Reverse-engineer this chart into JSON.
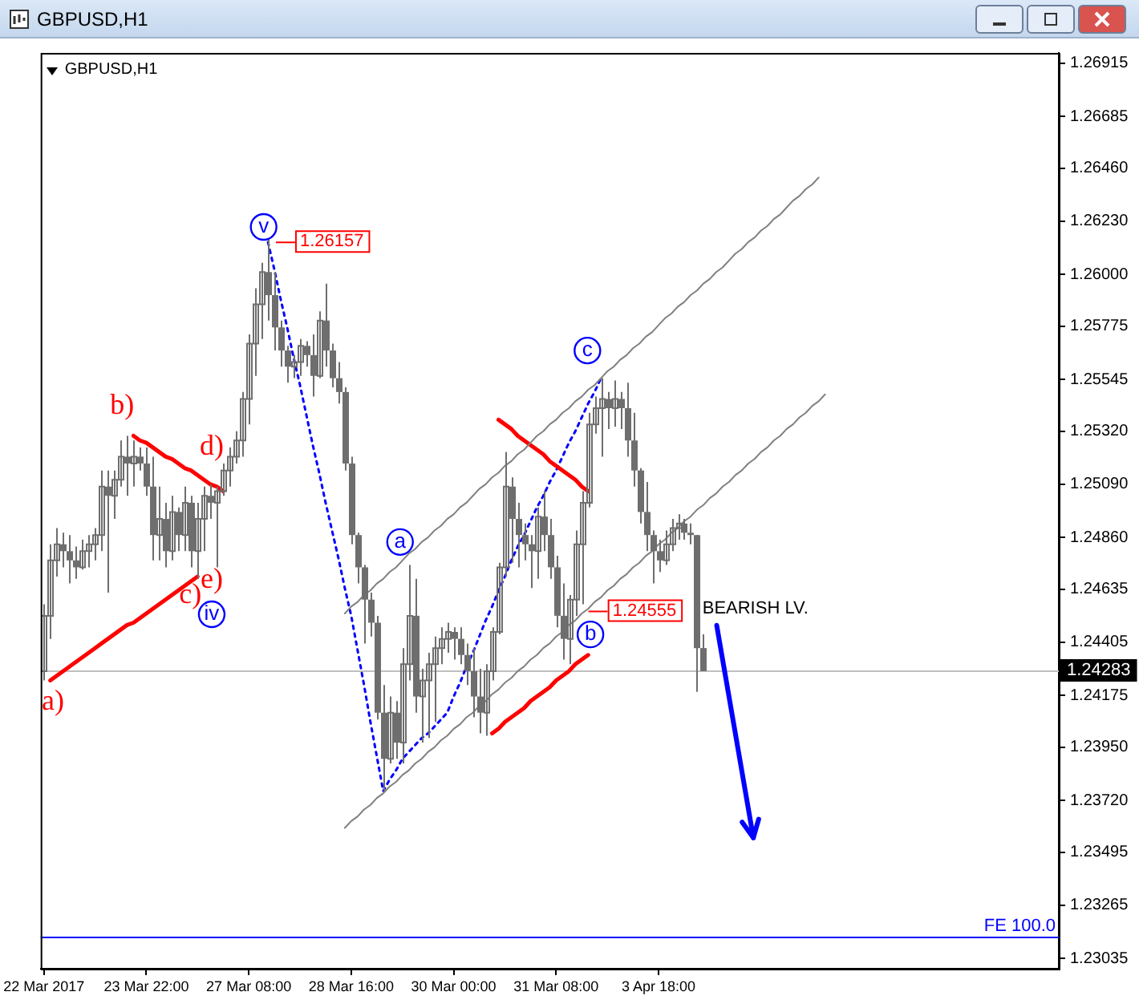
{
  "chart_data": {
    "type": "candlestick",
    "title": "GBPUSD,H1",
    "subtitle": "GBPUSD,H1",
    "color": "#6e6e6e",
    "marker": "none",
    "grid": false,
    "legend": false,
    "categories": [
      "22 Mar 2017",
      null,
      null,
      null,
      null,
      null,
      null,
      null,
      null,
      null,
      null,
      null,
      null,
      null,
      null,
      null,
      "23 Mar 22:00",
      null,
      null,
      null,
      null,
      null,
      null,
      null,
      null,
      null,
      null,
      null,
      null,
      null,
      null,
      null,
      "27 Mar 08:00",
      null,
      null,
      null,
      null,
      null,
      null,
      null,
      null,
      null,
      null,
      null,
      null,
      null,
      null,
      null,
      "28 Mar 16:00",
      null,
      null,
      null,
      null,
      null,
      null,
      null,
      null,
      null,
      null,
      null,
      null,
      null,
      null,
      null,
      "30 Mar 00:00",
      null,
      null,
      null,
      null,
      null,
      null,
      null,
      null,
      null,
      null,
      null,
      null,
      null,
      null,
      null,
      "31 Mar 08:00",
      null,
      null,
      null,
      null,
      null,
      null,
      null,
      null,
      null,
      null,
      null,
      null,
      null,
      null,
      null,
      "3 Apr 18:00",
      null,
      null,
      null,
      null,
      null,
      null,
      null,
      null,
      null,
      null,
      null,
      null,
      null,
      null,
      null,
      null,
      null,
      null,
      null,
      null,
      null,
      null,
      null,
      null,
      null,
      null,
      null,
      null,
      null,
      null,
      null,
      null,
      null,
      null,
      null,
      null,
      null,
      null,
      null,
      null,
      null,
      null,
      null,
      null,
      null,
      null,
      null,
      null,
      null,
      null,
      null,
      null,
      null,
      null,
      null,
      null,
      null,
      null,
      null,
      null,
      null,
      null
    ],
    "ohlc": [
      [
        1.2428,
        1.2457,
        1.2424,
        1.2452
      ],
      [
        1.2452,
        1.2483,
        1.2442,
        1.2476
      ],
      [
        1.2476,
        1.249,
        1.2469,
        1.2483
      ],
      [
        1.2483,
        1.2488,
        1.2473,
        1.248
      ],
      [
        1.248,
        1.2487,
        1.2466,
        1.2476
      ],
      [
        1.2476,
        1.2482,
        1.2468,
        1.2473
      ],
      [
        1.2473,
        1.2485,
        1.2472,
        1.248
      ],
      [
        1.248,
        1.2487,
        1.2473,
        1.2483
      ],
      [
        1.2483,
        1.249,
        1.2476,
        1.2487
      ],
      [
        1.2487,
        1.2515,
        1.248,
        1.2508
      ],
      [
        1.2508,
        1.2515,
        1.2462,
        1.2504
      ],
      [
        1.2504,
        1.2515,
        1.2494,
        1.2511
      ],
      [
        1.2511,
        1.2528,
        1.2508,
        1.2521
      ],
      [
        1.2521,
        1.253,
        1.2504,
        1.2518
      ],
      [
        1.2518,
        1.2528,
        1.2508,
        1.2521
      ],
      [
        1.2521,
        1.2525,
        1.2515,
        1.2518
      ],
      [
        1.2518,
        1.2525,
        1.2504,
        1.2508
      ],
      [
        1.2508,
        1.2521,
        1.2476,
        1.2487
      ],
      [
        1.2487,
        1.2508,
        1.2476,
        1.2494
      ],
      [
        1.2494,
        1.2501,
        1.2473,
        1.248
      ],
      [
        1.248,
        1.2504,
        1.2476,
        1.2497
      ],
      [
        1.2497,
        1.2499,
        1.248,
        1.2487
      ],
      [
        1.2487,
        1.2508,
        1.248,
        1.2501
      ],
      [
        1.2501,
        1.2504,
        1.2473,
        1.248
      ],
      [
        1.248,
        1.2501,
        1.2468,
        1.2494
      ],
      [
        1.2494,
        1.2508,
        1.248,
        1.2504
      ],
      [
        1.2504,
        1.2509,
        1.2494,
        1.2501
      ],
      [
        1.2501,
        1.2508,
        1.2473,
        1.2506
      ],
      [
        1.2506,
        1.2518,
        1.2504,
        1.2515
      ],
      [
        1.2515,
        1.2525,
        1.2508,
        1.2521
      ],
      [
        1.2521,
        1.2532,
        1.2518,
        1.2528
      ],
      [
        1.2528,
        1.2549,
        1.2521,
        1.2546
      ],
      [
        1.2546,
        1.2574,
        1.2535,
        1.257
      ],
      [
        1.257,
        1.2594,
        1.2556,
        1.2587
      ],
      [
        1.2587,
        1.2605,
        1.2572,
        1.2601
      ],
      [
        1.2601,
        1.2615,
        1.258,
        1.2591
      ],
      [
        1.2591,
        1.2601,
        1.2567,
        1.2577
      ],
      [
        1.2577,
        1.258,
        1.256,
        1.2567
      ],
      [
        1.2567,
        1.2569,
        1.2553,
        1.256
      ],
      [
        1.256,
        1.2565,
        1.2555,
        1.2562
      ],
      [
        1.2562,
        1.2572,
        1.2556,
        1.2569
      ],
      [
        1.2569,
        1.2571,
        1.256,
        1.2565
      ],
      [
        1.2565,
        1.2574,
        1.2547,
        1.2556
      ],
      [
        1.2556,
        1.2584,
        1.2555,
        1.258
      ],
      [
        1.258,
        1.2596,
        1.256,
        1.2567
      ],
      [
        1.2567,
        1.257,
        1.2551,
        1.2555
      ],
      [
        1.2555,
        1.2562,
        1.2544,
        1.2549
      ],
      [
        1.2549,
        1.2551,
        1.2515,
        1.2518
      ],
      [
        1.2518,
        1.2521,
        1.2483,
        1.2487
      ],
      [
        1.2487,
        1.2488,
        1.2466,
        1.2473
      ],
      [
        1.2473,
        1.2474,
        1.244,
        1.2459
      ],
      [
        1.2459,
        1.2462,
        1.2443,
        1.2449
      ],
      [
        1.2449,
        1.2452,
        1.2407,
        1.241
      ],
      [
        1.241,
        1.2422,
        1.2376,
        1.239
      ],
      [
        1.239,
        1.2417,
        1.2388,
        1.241
      ],
      [
        1.241,
        1.2415,
        1.239,
        1.2397
      ],
      [
        1.2397,
        1.2438,
        1.2388,
        1.2431
      ],
      [
        1.2431,
        1.2474,
        1.2424,
        1.2452
      ],
      [
        1.2452,
        1.2468,
        1.241,
        1.2417
      ],
      [
        1.2417,
        1.2429,
        1.2397,
        1.2424
      ],
      [
        1.2424,
        1.2436,
        1.2399,
        1.2431
      ],
      [
        1.2431,
        1.2443,
        1.2406,
        1.2438
      ],
      [
        1.2438,
        1.2447,
        1.2431,
        1.2442
      ],
      [
        1.2442,
        1.2449,
        1.2436,
        1.2445
      ],
      [
        1.2445,
        1.2447,
        1.2433,
        1.2442
      ],
      [
        1.2442,
        1.2447,
        1.2431,
        1.2435
      ],
      [
        1.2435,
        1.244,
        1.2422,
        1.2428
      ],
      [
        1.2428,
        1.2438,
        1.2408,
        1.2417
      ],
      [
        1.2417,
        1.2429,
        1.2401,
        1.241
      ],
      [
        1.241,
        1.2431,
        1.24,
        1.2428
      ],
      [
        1.2428,
        1.2447,
        1.2424,
        1.2445
      ],
      [
        1.2445,
        1.2475,
        1.2444,
        1.2473
      ],
      [
        1.2473,
        1.2523,
        1.2469,
        1.2508
      ],
      [
        1.2508,
        1.2512,
        1.2475,
        1.2494
      ],
      [
        1.2494,
        1.2501,
        1.2473,
        1.2487
      ],
      [
        1.2487,
        1.2492,
        1.2476,
        1.2483
      ],
      [
        1.2483,
        1.2487,
        1.2464,
        1.248
      ],
      [
        1.248,
        1.2499,
        1.2468,
        1.2495
      ],
      [
        1.2495,
        1.2506,
        1.248,
        1.2487
      ],
      [
        1.2487,
        1.2494,
        1.2468,
        1.2473
      ],
      [
        1.2473,
        1.2478,
        1.2447,
        1.2452
      ],
      [
        1.2452,
        1.2466,
        1.2433,
        1.2442
      ],
      [
        1.2442,
        1.2461,
        1.2431,
        1.2459
      ],
      [
        1.2459,
        1.2489,
        1.2452,
        1.2483
      ],
      [
        1.2483,
        1.2506,
        1.2457,
        1.2501
      ],
      [
        1.2501,
        1.254,
        1.2499,
        1.2535
      ],
      [
        1.2535,
        1.2547,
        1.2531,
        1.2542
      ],
      [
        1.2542,
        1.2555,
        1.2521,
        1.2546
      ],
      [
        1.2546,
        1.2549,
        1.2533,
        1.2542
      ],
      [
        1.2542,
        1.2554,
        1.2534,
        1.2546
      ],
      [
        1.2546,
        1.2549,
        1.2533,
        1.2542
      ],
      [
        1.2542,
        1.2553,
        1.2521,
        1.2528
      ],
      [
        1.2528,
        1.254,
        1.2508,
        1.2515
      ],
      [
        1.2515,
        1.2516,
        1.2492,
        1.2497
      ],
      [
        1.2497,
        1.251,
        1.248,
        1.2487
      ],
      [
        1.2487,
        1.2489,
        1.2466,
        1.248
      ],
      [
        1.248,
        1.2485,
        1.2471,
        1.2476
      ],
      [
        1.2476,
        1.2489,
        1.2474,
        1.2483
      ],
      [
        1.2483,
        1.2494,
        1.248,
        1.249
      ],
      [
        1.249,
        1.2496,
        1.2485,
        1.2492
      ],
      [
        1.2492,
        1.2494,
        1.2485,
        1.2488
      ],
      [
        1.2488,
        1.2492,
        1.2483,
        1.2487
      ],
      [
        1.2487,
        1.2487,
        1.2419,
        1.2438
      ],
      [
        1.2438,
        1.2444,
        1.2428,
        1.2428
      ],
      null,
      null,
      null,
      null,
      null,
      null,
      null,
      null,
      null,
      null,
      null,
      null,
      null,
      null,
      null,
      null,
      null,
      null,
      null,
      null,
      null,
      null,
      null,
      null,
      null,
      null,
      null,
      null,
      null,
      null,
      null,
      null,
      null,
      null,
      null,
      null,
      null,
      null,
      null,
      null,
      null,
      null,
      null,
      null,
      null,
      null,
      null,
      null,
      null,
      null,
      null,
      null,
      null,
      null,
      null
    ],
    "series": [
      {
        "type": "line",
        "color": "#808080",
        "values": [
          null,
          null,
          null,
          null,
          null,
          null,
          null,
          null,
          null,
          null,
          null,
          null,
          null,
          null,
          null,
          null,
          null,
          null,
          null,
          null,
          null,
          null,
          null,
          null,
          null,
          null,
          null,
          null,
          null,
          null,
          null,
          null,
          null,
          null,
          null,
          null,
          null,
          null,
          null,
          null,
          null,
          null,
          null,
          null,
          null,
          null,
          null,
          1.2453,
          1.2456,
          1.2458,
          1.2461,
          1.2463,
          1.2466,
          1.2468,
          1.2471,
          1.2473,
          1.2476,
          1.2479,
          1.2481,
          1.2484,
          1.2486,
          1.2489,
          1.2491,
          1.2494,
          1.2496,
          1.2499,
          1.2501,
          1.2504,
          1.2507,
          1.2509,
          1.2512,
          1.2514,
          1.2517,
          1.2519,
          1.2522,
          1.2524,
          1.2527,
          1.253,
          1.2532,
          1.2535,
          1.2537,
          1.254,
          1.2542,
          1.2545,
          1.2547,
          1.255,
          1.2552,
          1.2555,
          1.2558,
          1.256,
          1.2563,
          1.2565,
          1.2568,
          1.257,
          1.2573,
          1.2575,
          1.2578,
          1.2581,
          1.2583,
          1.2586,
          1.2588,
          1.2591,
          1.2593,
          1.2596,
          1.2598,
          1.2601,
          1.2603,
          1.2606,
          1.2609,
          1.2611,
          1.2614,
          1.2616,
          1.2619,
          1.2621,
          1.2624,
          1.2626,
          1.2629,
          1.2632,
          1.2634,
          1.2637,
          1.2639,
          1.2642,
          null,
          null,
          null,
          null,
          null,
          null,
          null,
          null,
          null,
          null,
          null,
          null,
          null,
          null,
          null,
          null,
          null,
          null,
          null,
          null,
          null,
          null,
          null,
          null,
          null,
          null,
          null,
          null,
          null,
          null,
          null,
          null,
          null,
          null,
          null,
          null,
          null
        ]
      },
      {
        "type": "line",
        "color": "#808080",
        "values": [
          null,
          null,
          null,
          null,
          null,
          null,
          null,
          null,
          null,
          null,
          null,
          null,
          null,
          null,
          null,
          null,
          null,
          null,
          null,
          null,
          null,
          null,
          null,
          null,
          null,
          null,
          null,
          null,
          null,
          null,
          null,
          null,
          null,
          null,
          null,
          null,
          null,
          null,
          null,
          null,
          null,
          null,
          null,
          null,
          null,
          null,
          null,
          1.236,
          1.2363,
          1.2365,
          1.2368,
          1.237,
          1.2373,
          1.2375,
          1.2378,
          1.238,
          1.2383,
          1.2385,
          1.2388,
          1.239,
          1.2393,
          1.2395,
          1.2398,
          1.24,
          1.2403,
          1.2405,
          1.2408,
          1.241,
          1.2413,
          1.2415,
          1.2418,
          1.242,
          1.2423,
          1.2425,
          1.2428,
          1.243,
          1.2433,
          1.2435,
          1.2438,
          1.244,
          1.2443,
          1.2445,
          1.2448,
          1.245,
          1.2453,
          1.2455,
          1.2458,
          1.246,
          1.2463,
          1.2465,
          1.2468,
          1.247,
          1.2473,
          1.2475,
          1.2478,
          1.248,
          1.2483,
          1.2485,
          1.2488,
          1.249,
          1.2493,
          1.2495,
          1.2498,
          1.25,
          1.2503,
          1.2505,
          1.2508,
          1.251,
          1.2513,
          1.2515,
          1.2518,
          1.252,
          1.2523,
          1.2525,
          1.2528,
          1.253,
          1.2533,
          1.2535,
          1.2538,
          1.254,
          1.2543,
          1.2545,
          1.2548,
          null,
          null,
          null,
          null,
          null,
          null,
          null,
          null,
          null,
          null,
          null,
          null,
          null,
          null,
          null,
          null,
          null,
          null,
          null,
          null,
          null,
          null,
          null,
          null,
          null,
          null,
          null,
          null,
          null,
          null,
          null,
          null,
          null,
          null,
          null,
          null
        ]
      },
      {
        "type": "line",
        "color": "#ff0000",
        "values": [
          null,
          1.2424,
          1.2426,
          1.2428,
          1.243,
          1.2432,
          1.2434,
          1.2436,
          1.2438,
          1.244,
          1.2442,
          1.2444,
          1.2446,
          1.2448,
          1.2449,
          1.2451,
          1.2453,
          1.2455,
          1.2457,
          1.2459,
          1.2461,
          1.2463,
          1.2465,
          1.2467,
          1.2469,
          null,
          null,
          null,
          null,
          null,
          null,
          null,
          null,
          null,
          null,
          null,
          null,
          null,
          null,
          null,
          null,
          null,
          null,
          null,
          null,
          null,
          null,
          null,
          null,
          null,
          null,
          null,
          null,
          null,
          null,
          null,
          null,
          null,
          null,
          null,
          null,
          null,
          null,
          null,
          null,
          null,
          null,
          null,
          null,
          null,
          null,
          null,
          null,
          null,
          null,
          null,
          null,
          null,
          null,
          null,
          null,
          null,
          null,
          null,
          null,
          null,
          null,
          null,
          null,
          null,
          null,
          null,
          null,
          null,
          null,
          null,
          null,
          null,
          null,
          null,
          null,
          null,
          null,
          null,
          null,
          null,
          null,
          null,
          null,
          null,
          null,
          null,
          null,
          null,
          null,
          null,
          null,
          null,
          null,
          null,
          null,
          null,
          null,
          null,
          null,
          null,
          null,
          null,
          null,
          null,
          null,
          null,
          null,
          null,
          null,
          null,
          null,
          null,
          null,
          null,
          null,
          null,
          null,
          null,
          null,
          null,
          null,
          null,
          null,
          null,
          null,
          null,
          null,
          null,
          null,
          null,
          null,
          null,
          null
        ]
      },
      {
        "type": "line",
        "color": "#ff0000",
        "values": [
          null,
          null,
          null,
          null,
          null,
          null,
          null,
          null,
          null,
          null,
          null,
          null,
          null,
          null,
          1.253,
          1.2528,
          1.2527,
          1.2525,
          1.2523,
          1.2521,
          1.252,
          1.2518,
          1.2516,
          1.2515,
          1.2513,
          1.2511,
          1.2509,
          1.2508,
          1.2506,
          null,
          null,
          null,
          null,
          null,
          null,
          null,
          null,
          null,
          null,
          null,
          null,
          null,
          null,
          null,
          null,
          null,
          null,
          null,
          null,
          null,
          null,
          null,
          null,
          null,
          null,
          null,
          null,
          null,
          null,
          null,
          null,
          null,
          null,
          null,
          null,
          null,
          null,
          null,
          null,
          null,
          null,
          null,
          null,
          null,
          null,
          null,
          null,
          null,
          null,
          null,
          null,
          null,
          null,
          null,
          null,
          null,
          null,
          null,
          null,
          null,
          null,
          null,
          null,
          null,
          null,
          null,
          null,
          null,
          null,
          null,
          null,
          null,
          null,
          null,
          null,
          null,
          null,
          null,
          null,
          null,
          null,
          null,
          null,
          null,
          null,
          null,
          null,
          null,
          null,
          null,
          null,
          null,
          null,
          null,
          null,
          null,
          null,
          null,
          null,
          null,
          null,
          null,
          null,
          null,
          null,
          null,
          null,
          null,
          null,
          null,
          null,
          null,
          null,
          null,
          null,
          null,
          null,
          null,
          null,
          null,
          null,
          null,
          null,
          null,
          null,
          null,
          null,
          null,
          null
        ]
      },
      {
        "type": "line",
        "color": "#ff0000",
        "values": [
          null,
          null,
          null,
          null,
          null,
          null,
          null,
          null,
          null,
          null,
          null,
          null,
          null,
          null,
          null,
          null,
          null,
          null,
          null,
          null,
          null,
          null,
          null,
          null,
          null,
          null,
          null,
          null,
          null,
          null,
          null,
          null,
          null,
          null,
          null,
          null,
          null,
          null,
          null,
          null,
          null,
          null,
          null,
          null,
          null,
          null,
          null,
          null,
          null,
          null,
          null,
          null,
          null,
          null,
          null,
          null,
          null,
          null,
          null,
          null,
          null,
          null,
          null,
          null,
          null,
          null,
          null,
          null,
          null,
          null,
          null,
          1.2537,
          1.2535,
          1.2533,
          1.253,
          1.2528,
          1.2526,
          1.2524,
          1.2522,
          1.2519,
          1.2517,
          1.2515,
          1.2513,
          1.2511,
          1.2508,
          1.2506,
          null,
          null,
          null,
          null,
          null,
          null,
          null,
          null,
          null,
          null,
          null,
          null,
          null,
          null,
          null,
          null,
          null,
          null,
          null,
          null,
          null,
          null,
          null,
          null,
          null,
          null,
          null,
          null,
          null,
          null,
          null,
          null,
          null,
          null,
          null,
          null,
          null,
          null,
          null,
          null,
          null,
          null,
          null,
          null,
          null,
          null,
          null,
          null,
          null,
          null,
          null,
          null,
          null,
          null,
          null,
          null,
          null,
          null,
          null,
          null,
          null,
          null,
          null,
          null,
          null,
          null,
          null,
          null,
          null,
          null,
          null,
          null,
          null
        ]
      },
      {
        "type": "line",
        "color": "#ff0000",
        "values": [
          null,
          null,
          null,
          null,
          null,
          null,
          null,
          null,
          null,
          null,
          null,
          null,
          null,
          null,
          null,
          null,
          null,
          null,
          null,
          null,
          null,
          null,
          null,
          null,
          null,
          null,
          null,
          null,
          null,
          null,
          null,
          null,
          null,
          null,
          null,
          null,
          null,
          null,
          null,
          null,
          null,
          null,
          null,
          null,
          null,
          null,
          null,
          null,
          null,
          null,
          null,
          null,
          null,
          null,
          null,
          null,
          null,
          null,
          null,
          null,
          null,
          null,
          null,
          null,
          null,
          null,
          null,
          null,
          null,
          null,
          1.2401,
          1.2403,
          1.2406,
          1.2408,
          1.241,
          1.2412,
          1.2415,
          1.2417,
          1.2419,
          1.2421,
          1.2424,
          1.2426,
          1.2428,
          1.2431,
          1.2433,
          1.2435,
          null,
          null,
          null,
          null,
          null,
          null,
          null,
          null,
          null,
          null,
          null,
          null,
          null,
          null,
          null,
          null,
          null,
          null,
          null,
          null,
          null,
          null,
          null,
          null,
          null,
          null,
          null,
          null,
          null,
          null,
          null,
          null,
          null,
          null,
          null,
          null,
          null,
          null,
          null,
          null,
          null,
          null,
          null,
          null,
          null,
          null,
          null,
          null,
          null,
          null,
          null,
          null,
          null,
          null,
          null,
          null,
          null,
          null,
          null,
          null,
          null,
          null,
          null,
          null,
          null,
          null,
          null,
          null,
          null,
          null,
          null,
          null,
          null
        ]
      },
      {
        "type": "line",
        "color": "#0000ff",
        "line_style": "dotted",
        "values": [
          null,
          null,
          null,
          null,
          null,
          null,
          null,
          null,
          null,
          null,
          null,
          null,
          null,
          null,
          null,
          null,
          null,
          null,
          null,
          null,
          null,
          null,
          null,
          null,
          null,
          null,
          null,
          null,
          null,
          null,
          null,
          null,
          null,
          null,
          null,
          1.2614,
          1.2602,
          1.2589,
          1.2577,
          1.2564,
          1.2552,
          1.2539,
          1.2526,
          1.2514,
          1.2501,
          1.2489,
          1.2477,
          1.2464,
          1.2452,
          1.2437,
          1.2422,
          1.2406,
          1.2391,
          1.2376,
          1.2381,
          1.2385,
          1.239,
          1.2393,
          1.2396,
          1.2399,
          1.2401,
          1.2404,
          1.2407,
          1.241,
          1.2417,
          1.2423,
          1.243,
          1.2436,
          1.2443,
          1.245,
          1.2456,
          1.2463,
          1.2469,
          1.2476,
          1.2482,
          1.2487,
          1.2493,
          1.2499,
          1.2504,
          1.251,
          1.2515,
          1.2521,
          1.2527,
          1.2532,
          1.2538,
          1.2544,
          1.2549,
          1.2555,
          null,
          null,
          null,
          null,
          null,
          null,
          null,
          null,
          null,
          null,
          null,
          null,
          null,
          null,
          null,
          null,
          null,
          null,
          null,
          null,
          null,
          null,
          null,
          null,
          null,
          null,
          null,
          null,
          null,
          null,
          null,
          null,
          null,
          null,
          null,
          null,
          null,
          null,
          null,
          null,
          null,
          null,
          null,
          null,
          null,
          null,
          null,
          null,
          null,
          null,
          null,
          null,
          null,
          null,
          null,
          null,
          null,
          null,
          null,
          null,
          null,
          null,
          null,
          null,
          null,
          null,
          null,
          null,
          null,
          null,
          null
        ]
      }
    ],
    "ylim": [
      1.2299,
      1.2696
    ],
    "yticks": [
      1.23035,
      1.23265,
      1.23495,
      {
        "value": 1.2372,
        "label": "1.23720"
      },
      {
        "value": 1.2395,
        "label": "1.23950"
      },
      1.24175,
      1.24405,
      1.24635,
      {
        "value": 1.2486,
        "label": "1.24860"
      },
      {
        "value": 1.2509,
        "label": "1.25090"
      },
      {
        "value": 1.2532,
        "label": "1.25320"
      },
      1.25545,
      1.25775,
      {
        "value": 1.26,
        "label": "1.26000"
      },
      {
        "value": 1.2623,
        "label": "1.26230"
      },
      {
        "value": 1.2646,
        "label": "1.26460"
      },
      1.26685,
      1.26915
    ],
    "ref_lines": [
      {
        "axis": "y",
        "value": 1.24283,
        "label": "1.24283",
        "color": "#c0c0c0"
      },
      {
        "axis": "y",
        "value": 1.2313,
        "label": "FE 100.0",
        "color": "#0000ff"
      }
    ],
    "annotations": [
      "a)",
      "b)",
      "c)",
      "d)",
      "e)",
      "iv",
      "v",
      "a",
      "b",
      "c",
      "1.26157",
      "1.24555",
      "BEARISH LV."
    ]
  }
}
